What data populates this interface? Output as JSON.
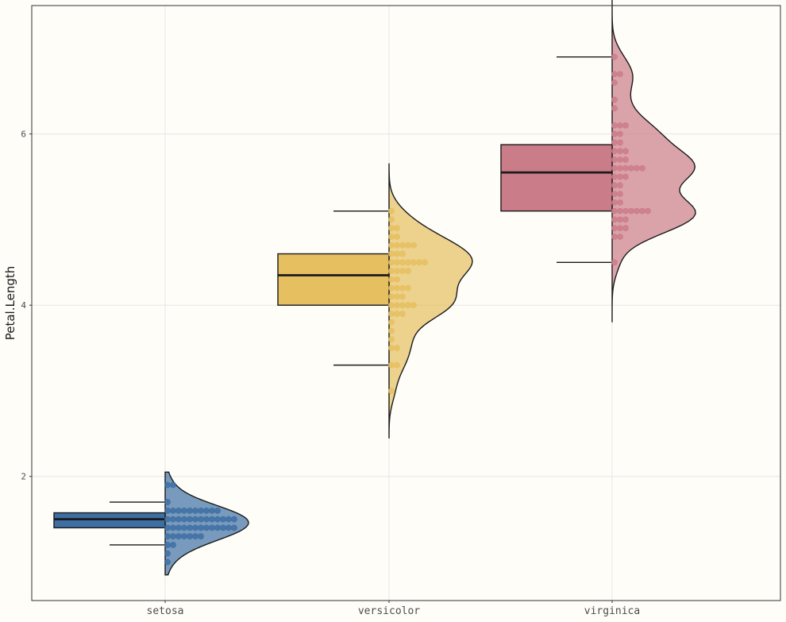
{
  "chart_data": {
    "type": "raincloud",
    "title": "",
    "xlabel": "",
    "ylabel": "Petal.Length",
    "ylim": [
      0.55,
      7.5
    ],
    "y_ticks": [
      2,
      4,
      6
    ],
    "y_tick_labels": [
      "2",
      "4",
      "6"
    ],
    "categories": [
      "setosa",
      "versicolor",
      "virginica"
    ],
    "grid": true,
    "colors": {
      "setosa": "#3e6fa3",
      "versicolor": "#e5bf60",
      "virginica": "#cb7c89",
      "background": "#fefdf8",
      "grid": "#e6e6e6",
      "outline": "#1a1a1a"
    },
    "boxes": [
      {
        "group": "setosa",
        "q1": 1.4,
        "median": 1.5,
        "q3": 1.575,
        "whisker_low": 1.2,
        "whisker_high": 1.7
      },
      {
        "group": "versicolor",
        "q1": 4.0,
        "median": 4.35,
        "q3": 4.6,
        "whisker_low": 3.3,
        "whisker_high": 5.1
      },
      {
        "group": "virginica",
        "q1": 5.1,
        "median": 5.55,
        "q3": 5.875,
        "whisker_low": 4.5,
        "whisker_high": 6.9
      }
    ],
    "points": [
      {
        "group": "setosa",
        "values": [
          1.0,
          1.1,
          1.2,
          1.2,
          1.3,
          1.3,
          1.3,
          1.3,
          1.3,
          1.3,
          1.3,
          1.4,
          1.4,
          1.4,
          1.4,
          1.4,
          1.4,
          1.4,
          1.4,
          1.4,
          1.4,
          1.4,
          1.4,
          1.4,
          1.5,
          1.5,
          1.5,
          1.5,
          1.5,
          1.5,
          1.5,
          1.5,
          1.5,
          1.5,
          1.5,
          1.5,
          1.5,
          1.6,
          1.6,
          1.6,
          1.6,
          1.6,
          1.6,
          1.6,
          1.6,
          1.6,
          1.6,
          1.7,
          1.9,
          1.9
        ]
      },
      {
        "group": "versicolor",
        "values": [
          3.0,
          3.3,
          3.3,
          3.5,
          3.5,
          3.6,
          3.7,
          3.8,
          3.9,
          3.9,
          3.9,
          4.0,
          4.0,
          4.0,
          4.0,
          4.0,
          4.1,
          4.1,
          4.1,
          4.2,
          4.2,
          4.2,
          4.2,
          4.3,
          4.3,
          4.4,
          4.4,
          4.4,
          4.4,
          4.5,
          4.5,
          4.5,
          4.5,
          4.5,
          4.5,
          4.5,
          4.6,
          4.6,
          4.6,
          4.7,
          4.7,
          4.7,
          4.7,
          4.7,
          4.8,
          4.8,
          4.9,
          4.9,
          5.0,
          5.1
        ]
      },
      {
        "group": "virginica",
        "values": [
          4.5,
          4.8,
          4.8,
          4.9,
          4.9,
          4.9,
          5.0,
          5.0,
          5.0,
          5.1,
          5.1,
          5.1,
          5.1,
          5.1,
          5.1,
          5.1,
          5.2,
          5.2,
          5.3,
          5.3,
          5.4,
          5.4,
          5.5,
          5.5,
          5.5,
          5.6,
          5.6,
          5.6,
          5.6,
          5.6,
          5.6,
          5.7,
          5.7,
          5.7,
          5.8,
          5.8,
          5.8,
          5.9,
          5.9,
          6.0,
          6.0,
          6.1,
          6.1,
          6.1,
          6.3,
          6.4,
          6.6,
          6.7,
          6.7,
          6.9
        ]
      }
    ],
    "density_range": [
      {
        "group": "setosa",
        "min": 0.85,
        "max": 2.05
      },
      {
        "group": "versicolor",
        "min": 2.45,
        "max": 5.65
      },
      {
        "group": "virginica",
        "min": 3.8,
        "max": 7.6
      }
    ]
  }
}
